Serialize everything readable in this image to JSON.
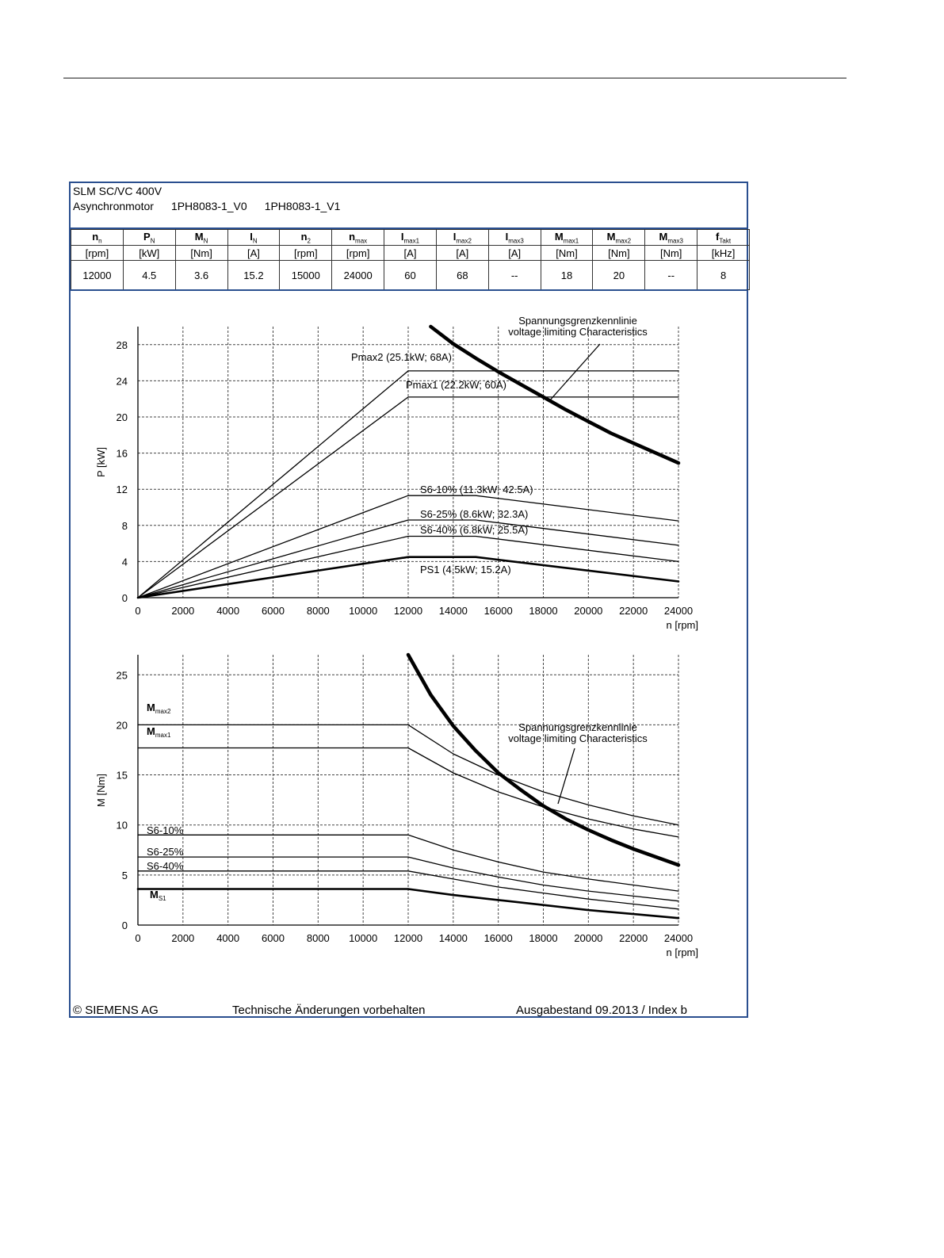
{
  "header": {
    "title": "SLM SC/VC 400V",
    "motor_label": "Asynchronmotor",
    "models": [
      "1PH8083-1_V0",
      "1PH8083-1_V1"
    ]
  },
  "spec_table": {
    "columns": [
      {
        "symbol": "n",
        "sub": "n",
        "unit": "[rpm]",
        "value": "12000"
      },
      {
        "symbol": "P",
        "sub": "N",
        "unit": "[kW]",
        "value": "4.5"
      },
      {
        "symbol": "M",
        "sub": "N",
        "unit": "[Nm]",
        "value": "3.6"
      },
      {
        "symbol": "I",
        "sub": "N",
        "unit": "[A]",
        "value": "15.2"
      },
      {
        "symbol": "n",
        "sub": "2",
        "unit": "[rpm]",
        "value": "15000"
      },
      {
        "symbol": "n",
        "sub": "max",
        "unit": "[rpm]",
        "value": "24000"
      },
      {
        "symbol": "I",
        "sub": "max1",
        "unit": "[A]",
        "value": "60"
      },
      {
        "symbol": "I",
        "sub": "max2",
        "unit": "[A]",
        "value": "68"
      },
      {
        "symbol": "I",
        "sub": "max3",
        "unit": "[A]",
        "value": "--"
      },
      {
        "symbol": "M",
        "sub": "max1",
        "unit": "[Nm]",
        "value": "18"
      },
      {
        "symbol": "M",
        "sub": "max2",
        "unit": "[Nm]",
        "value": "20"
      },
      {
        "symbol": "M",
        "sub": "max3",
        "unit": "[Nm]",
        "value": "--"
      },
      {
        "symbol": "f",
        "sub": "Takt",
        "unit": "[kHz]",
        "value": "8"
      }
    ]
  },
  "chart_data": [
    {
      "type": "line",
      "title": "",
      "xlabel": "n [rpm]",
      "ylabel": "P [kW]",
      "xlim": [
        0,
        24000
      ],
      "ylim": [
        0,
        30
      ],
      "xticks": [
        0,
        2000,
        4000,
        6000,
        8000,
        10000,
        12000,
        14000,
        16000,
        18000,
        20000,
        22000,
        24000
      ],
      "yticks": [
        0,
        4,
        8,
        12,
        16,
        20,
        24,
        28
      ],
      "grid": true,
      "annotation": {
        "lines": [
          "Spannungsgrenzkennlinie",
          "voltage limiting  Characteristics"
        ]
      },
      "series": [
        {
          "name": "Pmax2 (25.1kW; 68A)",
          "x": [
            0,
            12000,
            15000,
            24000
          ],
          "y": [
            0,
            25.1,
            25.1,
            25.1
          ]
        },
        {
          "name": "Pmax1 (22.2kW; 60A)",
          "x": [
            0,
            12000,
            18000,
            24000
          ],
          "y": [
            0,
            22.2,
            22.2,
            22.2
          ]
        },
        {
          "name": "S6-10% (11.3kW; 42.5A)",
          "x": [
            0,
            12000,
            15000,
            24000
          ],
          "y": [
            0,
            11.3,
            11.3,
            8.5
          ]
        },
        {
          "name": "S6-25% (8.6kW; 32.3A)",
          "x": [
            0,
            12000,
            15000,
            24000
          ],
          "y": [
            0,
            8.6,
            8.6,
            5.8
          ]
        },
        {
          "name": "S6-40% (6.8kW; 25.5A)",
          "x": [
            0,
            12000,
            15000,
            24000
          ],
          "y": [
            0,
            6.8,
            6.8,
            4.0
          ]
        },
        {
          "name": "PS1 (4.5kW; 15.2A)",
          "x": [
            0,
            12000,
            15000,
            24000
          ],
          "y": [
            0,
            4.5,
            4.5,
            1.8
          ]
        },
        {
          "name": "",
          "x": [
            13000,
            14000,
            15000,
            16000,
            17000,
            18000,
            19000,
            20000,
            21000,
            22000,
            23000,
            24000
          ],
          "y": [
            30.0,
            28.1,
            26.5,
            25.0,
            23.6,
            22.2,
            20.8,
            19.5,
            18.2,
            17.1,
            16.0,
            14.9
          ]
        }
      ]
    },
    {
      "type": "line",
      "title": "",
      "xlabel": "n [rpm]",
      "ylabel": "M [Nm]",
      "xlim": [
        0,
        24000
      ],
      "ylim": [
        0,
        27
      ],
      "xticks": [
        0,
        2000,
        4000,
        6000,
        8000,
        10000,
        12000,
        14000,
        16000,
        18000,
        20000,
        22000,
        24000
      ],
      "yticks": [
        0,
        5,
        10,
        15,
        20,
        25
      ],
      "grid": true,
      "annotation": {
        "lines": [
          "Spannungsgrenzkennlinie",
          "voltage limiting  Characteristics"
        ]
      },
      "series": [
        {
          "name": "Mmax2",
          "label": "M",
          "label_sub": "max2",
          "x": [
            0,
            12000,
            14000,
            16000,
            18000,
            20000,
            22000,
            24000
          ],
          "y": [
            20.0,
            20.0,
            17.1,
            15.0,
            13.3,
            12.0,
            10.9,
            10.0
          ]
        },
        {
          "name": "Mmax1",
          "label": "M",
          "label_sub": "max1",
          "x": [
            0,
            12000,
            14000,
            16000,
            18000,
            20000,
            22000,
            24000
          ],
          "y": [
            17.7,
            17.7,
            15.2,
            13.3,
            11.8,
            10.6,
            9.6,
            8.8
          ]
        },
        {
          "name": "S6-10%",
          "x": [
            0,
            12000,
            14000,
            16000,
            18000,
            20000,
            22000,
            24000
          ],
          "y": [
            9.0,
            9.0,
            7.5,
            6.3,
            5.3,
            4.6,
            4.0,
            3.4
          ]
        },
        {
          "name": "S6-25%",
          "x": [
            0,
            12000,
            14000,
            16000,
            18000,
            20000,
            22000,
            24000
          ],
          "y": [
            6.8,
            6.8,
            5.7,
            4.8,
            4.0,
            3.4,
            2.9,
            2.4
          ]
        },
        {
          "name": "S6-40%",
          "x": [
            0,
            12000,
            14000,
            16000,
            18000,
            20000,
            22000,
            24000
          ],
          "y": [
            5.4,
            5.4,
            4.6,
            3.8,
            3.2,
            2.6,
            2.1,
            1.6
          ]
        },
        {
          "name": "MS1",
          "label": "M",
          "label_sub": "S1",
          "x": [
            0,
            12000,
            14000,
            16000,
            18000,
            20000,
            22000,
            24000
          ],
          "y": [
            3.6,
            3.6,
            3.0,
            2.5,
            2.0,
            1.5,
            1.1,
            0.7
          ]
        },
        {
          "name": "",
          "x": [
            12000,
            13000,
            14000,
            15000,
            16000,
            17000,
            18000,
            19000,
            20000,
            21000,
            22000,
            23000,
            24000
          ],
          "y": [
            27.0,
            23.0,
            19.9,
            17.4,
            15.2,
            13.5,
            11.9,
            10.6,
            9.5,
            8.5,
            7.6,
            6.8,
            6.0
          ]
        }
      ]
    }
  ],
  "footer": {
    "copyright": "© SIEMENS AG",
    "notice": "Technische Änderungen vorbehalten",
    "edition": "Ausgabestand 09.2013 / Index b"
  }
}
